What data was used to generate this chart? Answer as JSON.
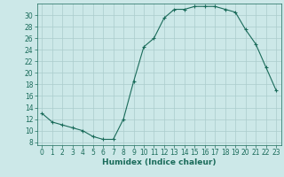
{
  "x": [
    0,
    1,
    2,
    3,
    4,
    5,
    6,
    7,
    8,
    9,
    10,
    11,
    12,
    13,
    14,
    15,
    16,
    17,
    18,
    19,
    20,
    21,
    22,
    23
  ],
  "y": [
    13,
    11.5,
    11,
    10.5,
    10,
    9,
    8.5,
    8.5,
    12,
    18.5,
    24.5,
    26,
    29.5,
    31,
    31,
    31.5,
    31.5,
    31.5,
    31,
    30.5,
    27.5,
    25,
    21,
    17
  ],
  "line_color": "#1a6b5a",
  "marker": "+",
  "bg_color": "#cce8e8",
  "grid_color": "#aacccc",
  "xlabel": "Humidex (Indice chaleur)",
  "xlim": [
    -0.5,
    23.5
  ],
  "ylim": [
    7.5,
    32
  ],
  "yticks": [
    8,
    10,
    12,
    14,
    16,
    18,
    20,
    22,
    24,
    26,
    28,
    30
  ],
  "xticks": [
    0,
    1,
    2,
    3,
    4,
    5,
    6,
    7,
    8,
    9,
    10,
    11,
    12,
    13,
    14,
    15,
    16,
    17,
    18,
    19,
    20,
    21,
    22,
    23
  ],
  "tick_color": "#1a6b5a",
  "font_color": "#1a6b5a",
  "xlabel_fontsize": 6.5,
  "tick_fontsize": 5.5
}
